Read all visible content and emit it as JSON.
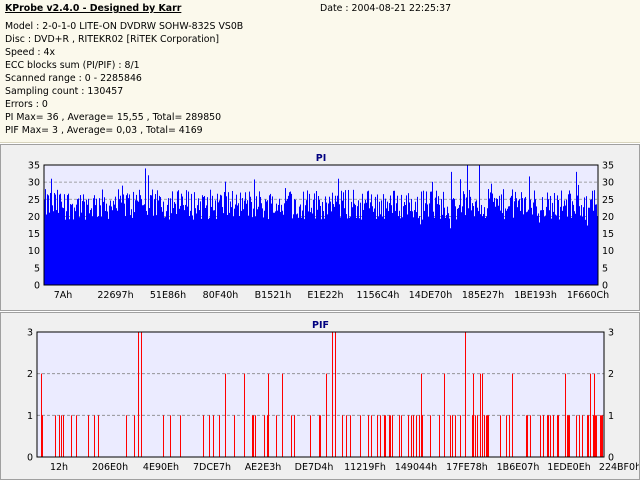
{
  "header": {
    "app_title": "KProbe v2.4.0 - Designed by Karr",
    "date": "Date : 2004-08-21 22:25:37",
    "lines": [
      "Model : 2-0-1-0 LITE-ON DVDRW SOHW-832S  VS0B",
      "Disc : DVD+R , RITEKR02 [RiTEK Corporation]",
      "Speed : 4x",
      "ECC blocks sum (PI/PIF) : 8/1",
      "Scanned range : 0 - 2285846",
      "Sampling count : 130457",
      "Errors : 0",
      "PI Max= 36 , Average= 15,55 , Total= 289850",
      "PIF Max= 3 , Average= 0,03 , Total= 4169"
    ]
  },
  "chart_data": [
    {
      "type": "bar",
      "title": "PI",
      "color": "#0000ff",
      "ylim": [
        0,
        35
      ],
      "yticks": [
        0,
        5,
        10,
        15,
        20,
        25,
        30,
        35
      ],
      "xtick_labels": [
        "7Ah",
        "22697h",
        "51E86h",
        "80F40h",
        "B1521h",
        "E1E22h",
        "1156C4h",
        "14DE70h",
        "185E27h",
        "1BE193h",
        "1F660Ch"
      ],
      "typical_range": [
        19,
        28
      ],
      "peaks": [
        {
          "x_frac": 0.183,
          "value": 34
        },
        {
          "x_frac": 0.187,
          "value": 32
        },
        {
          "x_frac": 0.763,
          "value": 35
        },
        {
          "x_frac": 0.785,
          "value": 36
        },
        {
          "x_frac": 0.735,
          "value": 33
        },
        {
          "x_frac": 0.96,
          "value": 33
        },
        {
          "x_frac": 0.012,
          "value": 31
        },
        {
          "x_frac": 0.53,
          "value": 31
        }
      ]
    },
    {
      "type": "bar",
      "title": "PIF",
      "color": "#ff0000",
      "ylim": [
        0,
        3
      ],
      "yticks": [
        0,
        1,
        2,
        3
      ],
      "xtick_labels": [
        "12h",
        "206E0h",
        "4E90Eh",
        "7DCE7h",
        "AE2E3h",
        "DE7D4h",
        "11219Fh",
        "149044h",
        "17FE78h",
        "1B6E07h",
        "1EDE0Eh",
        "224BF0h"
      ],
      "density_note": "sparse spikes of 1 and 2, occasional 3",
      "peaks": [
        {
          "x_frac": 0.178,
          "value": 3
        },
        {
          "x_frac": 0.183,
          "value": 3
        },
        {
          "x_frac": 0.52,
          "value": 3
        },
        {
          "x_frac": 0.525,
          "value": 3
        },
        {
          "x_frac": 0.755,
          "value": 3
        }
      ]
    }
  ]
}
